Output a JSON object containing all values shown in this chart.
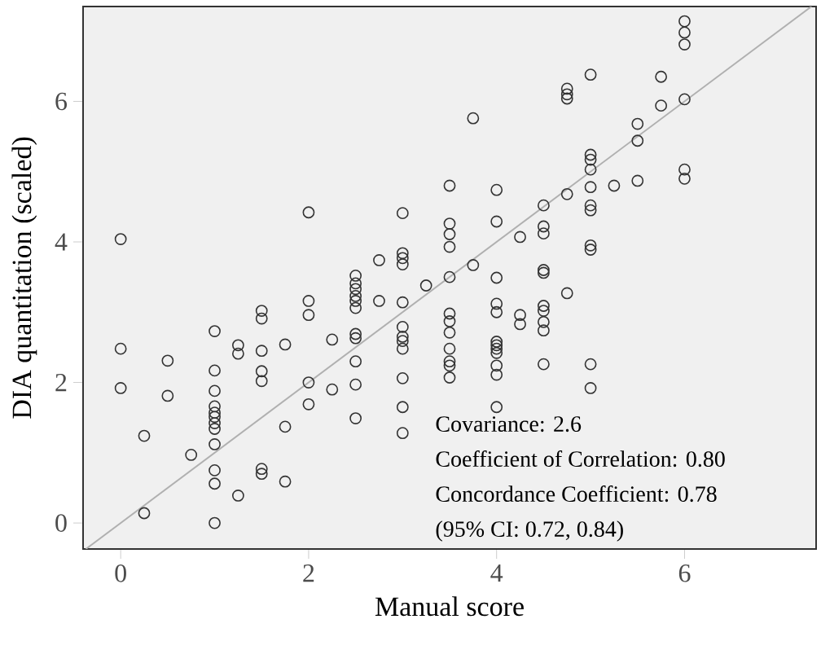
{
  "chart_data": {
    "type": "scatter",
    "xlabel": "Manual score",
    "ylabel": "DIA quantitation (scaled)",
    "xlim": [
      -0.4,
      7.4
    ],
    "ylim": [
      -0.37,
      7.35
    ],
    "xticks": [
      0,
      2,
      4,
      6
    ],
    "yticks": [
      0,
      2,
      4,
      6
    ],
    "grid": false,
    "annotations": [
      "Covariance: 2.6",
      "Coefficient of Correlation: 0.80",
      "Concordance Coefficient: 0.78",
      "(95% CI: 0.72, 0.84)"
    ],
    "series": [
      {
        "marker": "circle",
        "color": "#333333",
        "x": [
          0,
          0,
          0,
          0.25,
          0.25,
          0.5,
          0.5,
          0.75,
          1,
          1,
          1,
          1,
          1,
          1,
          1,
          1,
          1,
          1,
          1,
          1,
          1.25,
          1.25,
          1.25,
          1.5,
          1.5,
          1.5,
          1.5,
          1.5,
          1.5,
          1.5,
          1.75,
          1.75,
          1.75,
          2,
          2,
          2,
          2,
          2,
          2.25,
          2.25,
          2.5,
          2.5,
          2.5,
          2.5,
          2.5,
          2.5,
          2.5,
          2.5,
          2.5,
          2.5,
          2.5,
          2.75,
          2.75,
          3,
          3,
          3,
          3,
          3,
          3,
          3,
          3,
          3,
          3,
          3,
          3,
          3.25,
          3.5,
          3.5,
          3.5,
          3.5,
          3.5,
          3.5,
          3.5,
          3.5,
          3.5,
          3.5,
          3.5,
          3.5,
          3.75,
          3.75,
          4,
          4,
          4,
          4,
          4,
          4,
          4,
          4,
          4,
          4,
          4,
          4,
          4.25,
          4.25,
          4.25,
          4.5,
          4.5,
          4.5,
          4.5,
          4.5,
          4.5,
          4.5,
          4.5,
          4.5,
          4.5,
          4.75,
          4.75,
          4.75,
          4.75,
          4.75,
          5,
          5,
          5,
          5,
          5,
          5,
          5,
          5,
          5,
          5,
          5,
          5.25,
          5.5,
          5.5,
          5.5,
          5.75,
          5.75,
          6,
          6,
          6,
          6,
          6,
          6
        ],
        "values": [
          4.04,
          2.48,
          1.92,
          1.24,
          0.14,
          2.31,
          1.81,
          0.97,
          2.73,
          2.17,
          1.88,
          1.66,
          1.57,
          1.51,
          1.42,
          1.34,
          1.12,
          0.75,
          0.56,
          0.0,
          2.53,
          2.41,
          0.39,
          3.02,
          2.91,
          2.45,
          2.16,
          2.02,
          0.77,
          0.7,
          2.54,
          1.37,
          0.59,
          4.42,
          3.16,
          2.96,
          2.0,
          1.69,
          2.61,
          1.9,
          3.52,
          3.41,
          3.33,
          3.23,
          3.16,
          3.06,
          2.69,
          2.63,
          2.3,
          1.97,
          1.49,
          3.74,
          3.16,
          4.41,
          3.84,
          3.77,
          3.68,
          3.14,
          2.79,
          2.65,
          2.59,
          2.48,
          2.06,
          1.65,
          1.28,
          3.38,
          4.8,
          4.26,
          4.11,
          3.93,
          3.5,
          2.98,
          2.87,
          2.71,
          2.48,
          2.3,
          2.24,
          2.07,
          5.76,
          3.67,
          4.74,
          4.29,
          3.49,
          3.12,
          3.0,
          2.58,
          2.53,
          2.48,
          2.42,
          2.24,
          2.11,
          1.65,
          4.07,
          2.96,
          2.83,
          4.52,
          4.22,
          4.12,
          3.6,
          3.56,
          3.09,
          3.02,
          2.86,
          2.74,
          2.26,
          6.18,
          6.1,
          6.04,
          4.68,
          3.27,
          6.38,
          5.24,
          5.17,
          5.03,
          4.78,
          4.52,
          4.45,
          3.95,
          3.89,
          2.26,
          1.92,
          4.8,
          5.68,
          5.44,
          4.87,
          6.35,
          5.94,
          7.14,
          6.98,
          6.81,
          6.03,
          5.03,
          4.9
        ]
      },
      {
        "type": "line",
        "marker": "none",
        "color": "#b0b0b0",
        "x": [
          -0.37,
          7.35
        ],
        "values": [
          -0.37,
          7.35
        ]
      }
    ]
  }
}
